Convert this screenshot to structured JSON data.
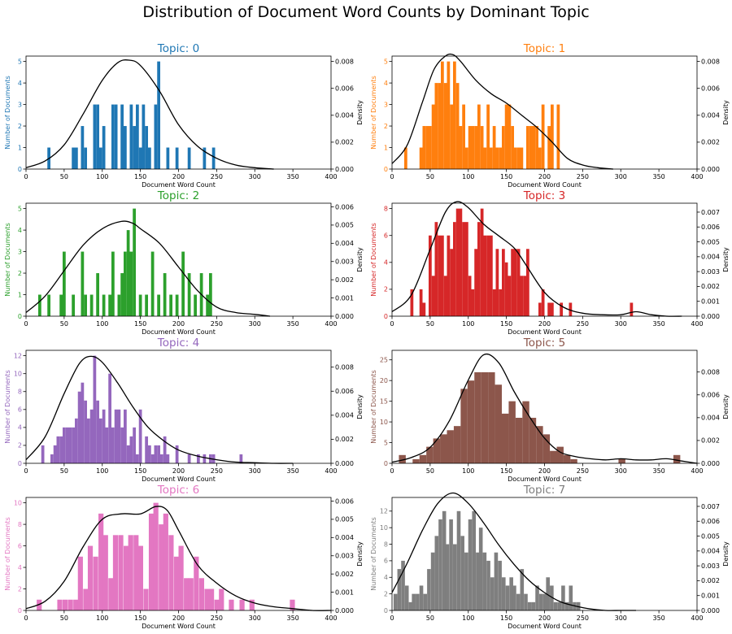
{
  "figure": {
    "title": "Distribution of Document Word Counts by Dominant Topic"
  },
  "chart_data": [
    {
      "type": "bar",
      "title": "Topic: 0",
      "color": "#1f77b4",
      "xlabel": "Document Word Count",
      "ylabel": "Number of Documents",
      "ylabel2": "Density",
      "xlim": [
        0,
        400
      ],
      "xticks": [
        0,
        50,
        100,
        150,
        200,
        250,
        300,
        350,
        400
      ],
      "ylim": [
        0,
        5.25
      ],
      "yticks": [
        0,
        1,
        2,
        3,
        4,
        5
      ],
      "y2lim": [
        0,
        0.0084
      ],
      "y2ticks": [
        "0.000",
        "0.002",
        "0.004",
        "0.006",
        "0.008"
      ],
      "bin_width": 4,
      "bin_starts": [
        28,
        60,
        64,
        72,
        76,
        88,
        92,
        96,
        100,
        112,
        116,
        124,
        128,
        136,
        140,
        144,
        148,
        152,
        156,
        160,
        168,
        172,
        184,
        196,
        212,
        232,
        244
      ],
      "counts": [
        1,
        1,
        1,
        2,
        1,
        3,
        3,
        1,
        2,
        3,
        3,
        3,
        2,
        3,
        2,
        3,
        1,
        3,
        2,
        1,
        3,
        5,
        1,
        1,
        1,
        1,
        1
      ],
      "kde_x": [
        0,
        25,
        50,
        75,
        100,
        120,
        135,
        150,
        175,
        200,
        225,
        250,
        275,
        300,
        325
      ],
      "kde_y": [
        0.0001,
        0.0006,
        0.0018,
        0.0041,
        0.0066,
        0.0079,
        0.0081,
        0.0077,
        0.0058,
        0.0033,
        0.0017,
        0.0008,
        0.0003,
        0.0001,
        0.0
      ]
    },
    {
      "type": "bar",
      "title": "Topic: 1",
      "color": "#ff7f0e",
      "xlabel": "Document Word Count",
      "ylabel": "Number of Documents",
      "ylabel2": "Density",
      "xlim": [
        0,
        400
      ],
      "xticks": [
        0,
        50,
        100,
        150,
        200,
        250,
        300,
        350,
        400
      ],
      "ylim": [
        0,
        5.25
      ],
      "yticks": [
        0,
        1,
        2,
        3,
        4,
        5
      ],
      "y2lim": [
        0,
        0.0084
      ],
      "y2ticks": [
        "0.000",
        "0.002",
        "0.004",
        "0.006",
        "0.008"
      ],
      "bin_width": 4,
      "bin_starts": [
        16,
        36,
        40,
        44,
        48,
        52,
        56,
        60,
        64,
        68,
        72,
        76,
        80,
        84,
        88,
        92,
        96,
        100,
        104,
        108,
        112,
        116,
        120,
        124,
        128,
        132,
        136,
        140,
        144,
        148,
        152,
        156,
        160,
        164,
        168,
        176,
        180,
        184,
        188,
        192,
        196,
        204,
        208,
        216
      ],
      "counts": [
        1,
        1,
        2,
        2,
        2,
        3,
        4,
        4,
        5,
        4,
        5,
        3,
        5,
        4,
        2,
        3,
        1,
        2,
        2,
        2,
        3,
        2,
        1,
        3,
        1,
        2,
        1,
        1,
        2,
        3,
        3,
        2,
        1,
        1,
        1,
        2,
        2,
        2,
        2,
        1,
        3,
        2,
        3,
        3
      ],
      "kde_x": [
        0,
        20,
        40,
        55,
        70,
        80,
        90,
        110,
        130,
        150,
        170,
        190,
        210,
        230,
        250,
        270,
        290
      ],
      "kde_y": [
        0.0004,
        0.0018,
        0.005,
        0.0074,
        0.0084,
        0.0085,
        0.008,
        0.0066,
        0.0056,
        0.0049,
        0.004,
        0.0031,
        0.002,
        0.0008,
        0.0003,
        0.0001,
        0.0
      ]
    },
    {
      "type": "bar",
      "title": "Topic: 2",
      "color": "#2ca02c",
      "xlabel": "Document Word Count",
      "ylabel": "Number of Documents",
      "ylabel2": "Density",
      "xlim": [
        0,
        400
      ],
      "xticks": [
        0,
        50,
        100,
        150,
        200,
        250,
        300,
        350,
        400
      ],
      "ylim": [
        0,
        5.25
      ],
      "yticks": [
        0,
        1,
        2,
        3,
        4,
        5
      ],
      "y2lim": [
        0,
        0.0062
      ],
      "y2ticks": [
        "0.000",
        "0.001",
        "0.002",
        "0.003",
        "0.004",
        "0.005",
        "0.006"
      ],
      "bin_width": 4,
      "bin_starts": [
        16,
        28,
        44,
        48,
        60,
        72,
        76,
        84,
        92,
        100,
        108,
        112,
        120,
        124,
        128,
        132,
        136,
        140,
        148,
        156,
        164,
        172,
        180,
        188,
        196,
        204,
        212,
        220,
        228,
        236,
        240
      ],
      "counts": [
        1,
        1,
        1,
        3,
        1,
        3,
        1,
        1,
        2,
        1,
        1,
        3,
        1,
        2,
        3,
        4,
        3,
        5,
        1,
        1,
        3,
        1,
        2,
        1,
        1,
        3,
        2,
        1,
        2,
        1,
        2
      ],
      "kde_x": [
        0,
        25,
        50,
        75,
        100,
        125,
        140,
        150,
        175,
        200,
        225,
        250,
        275,
        300,
        320
      ],
      "kde_y": [
        0.0002,
        0.0011,
        0.0025,
        0.0039,
        0.0048,
        0.0052,
        0.0051,
        0.0048,
        0.004,
        0.0027,
        0.0014,
        0.0005,
        0.0002,
        0.0001,
        0.0
      ]
    },
    {
      "type": "bar",
      "title": "Topic: 3",
      "color": "#d62728",
      "xlabel": "Document Word Count",
      "ylabel": "Number of Documents",
      "ylabel2": "Density",
      "xlim": [
        0,
        400
      ],
      "xticks": [
        0,
        50,
        100,
        150,
        200,
        250,
        300,
        350,
        400
      ],
      "ylim": [
        0,
        8.4
      ],
      "yticks": [
        0,
        2,
        4,
        6,
        8
      ],
      "y2lim": [
        0,
        0.0076
      ],
      "y2ticks": [
        "0.000",
        "0.001",
        "0.002",
        "0.003",
        "0.004",
        "0.005",
        "0.006",
        "0.007"
      ],
      "bin_width": 4,
      "bin_starts": [
        24,
        36,
        40,
        48,
        52,
        56,
        60,
        64,
        68,
        72,
        76,
        80,
        84,
        88,
        92,
        96,
        100,
        104,
        108,
        112,
        116,
        120,
        124,
        128,
        132,
        136,
        140,
        144,
        148,
        152,
        156,
        160,
        164,
        168,
        172,
        176,
        192,
        196,
        204,
        208,
        220,
        232,
        312
      ],
      "counts": [
        2,
        2,
        1,
        6,
        3,
        7,
        6,
        6,
        3,
        6,
        5,
        7,
        8,
        8,
        7,
        7,
        3,
        2,
        5,
        7,
        8,
        6,
        6,
        6,
        2,
        5,
        2,
        5,
        4,
        3,
        5,
        5,
        5,
        3,
        3,
        5,
        1,
        2,
        1,
        1,
        1,
        1,
        1
      ],
      "kde_x": [
        0,
        25,
        50,
        70,
        85,
        100,
        120,
        140,
        160,
        175,
        200,
        225,
        250,
        275,
        300,
        320,
        340,
        360,
        380
      ],
      "kde_y": [
        0.0003,
        0.0014,
        0.0045,
        0.007,
        0.0077,
        0.0073,
        0.0062,
        0.0054,
        0.0046,
        0.0035,
        0.0016,
        0.0006,
        0.0002,
        0.0001,
        0.0001,
        0.0003,
        0.0001,
        0.0,
        0.0
      ]
    },
    {
      "type": "bar",
      "title": "Topic: 4",
      "color": "#9467bd",
      "xlabel": "Document Word Count",
      "ylabel": "Number of Documents",
      "ylabel2": "Density",
      "xlim": [
        0,
        400
      ],
      "xticks": [
        0,
        50,
        100,
        150,
        200,
        250,
        300,
        350,
        400
      ],
      "ylim": [
        0,
        12.6
      ],
      "yticks": [
        0,
        2,
        4,
        6,
        8,
        10,
        12
      ],
      "y2lim": [
        0,
        0.0094
      ],
      "y2ticks": [
        "0.000",
        "0.002",
        "0.004",
        "0.006",
        "0.008"
      ],
      "bin_width": 4,
      "bin_starts": [
        20,
        32,
        36,
        40,
        44,
        48,
        52,
        56,
        60,
        64,
        68,
        72,
        76,
        80,
        84,
        88,
        92,
        96,
        100,
        104,
        108,
        112,
        116,
        120,
        124,
        128,
        132,
        136,
        140,
        144,
        148,
        156,
        160,
        164,
        168,
        172,
        176,
        180,
        184,
        196,
        212,
        224,
        232,
        240,
        244,
        280
      ],
      "counts": [
        2,
        1,
        2,
        3,
        3,
        4,
        4,
        4,
        4,
        5,
        8,
        9,
        7,
        5,
        6,
        12,
        7,
        5,
        6,
        4,
        10,
        4,
        6,
        6,
        4,
        6,
        2,
        3,
        4,
        1,
        6,
        3,
        2,
        1,
        2,
        2,
        1,
        3,
        1,
        2,
        1,
        1,
        1,
        1,
        1,
        1
      ],
      "kde_x": [
        0,
        25,
        50,
        70,
        85,
        100,
        120,
        140,
        160,
        180,
        200,
        225,
        250,
        275,
        300,
        325,
        350
      ],
      "kde_y": [
        0.0003,
        0.0022,
        0.0058,
        0.0083,
        0.0089,
        0.0084,
        0.0067,
        0.0047,
        0.003,
        0.0019,
        0.0011,
        0.0006,
        0.0003,
        0.0001,
        5e-05,
        0.0,
        0.0
      ]
    },
    {
      "type": "bar",
      "title": "Topic: 5",
      "color": "#8c564b",
      "xlabel": "Document Word Count",
      "ylabel": "Number of Documents",
      "ylabel2": "Density",
      "xlim": [
        0,
        400
      ],
      "xticks": [
        0,
        50,
        100,
        150,
        200,
        250,
        300,
        350,
        400
      ],
      "ylim": [
        0,
        27.3
      ],
      "yticks": [
        0,
        5,
        10,
        15,
        20,
        25
      ],
      "y2lim": [
        0,
        0.0099
      ],
      "y2ticks": [
        "0.000",
        "0.002",
        "0.004",
        "0.006",
        "0.008"
      ],
      "bin_width": 9,
      "bin_starts": [
        9,
        27,
        36,
        45,
        54,
        63,
        72,
        81,
        90,
        99,
        108,
        117,
        126,
        135,
        144,
        153,
        162,
        171,
        180,
        189,
        198,
        207,
        216,
        225,
        234,
        297,
        369
      ],
      "counts": [
        2,
        1,
        2,
        4,
        6,
        7,
        8,
        9,
        18,
        20,
        22,
        22,
        22,
        19,
        12,
        15,
        11,
        15,
        11,
        9,
        7,
        3,
        4,
        2,
        1,
        1,
        2
      ],
      "kde_x": [
        0,
        25,
        50,
        75,
        100,
        120,
        140,
        160,
        180,
        200,
        220,
        240,
        260,
        280,
        300,
        320,
        340,
        360,
        380,
        400
      ],
      "kde_y": [
        0.0001,
        0.0005,
        0.0014,
        0.0037,
        0.0073,
        0.0095,
        0.0088,
        0.0063,
        0.0041,
        0.0022,
        0.001,
        0.0006,
        0.0004,
        0.0003,
        0.0004,
        0.0003,
        0.0003,
        0.0004,
        0.0002,
        0.0
      ]
    },
    {
      "type": "bar",
      "title": "Topic: 6",
      "color": "#e377c2",
      "xlabel": "Document Word Count",
      "ylabel": "Number of Documents",
      "ylabel2": "Density",
      "xlim": [
        0,
        400
      ],
      "xticks": [
        0,
        50,
        100,
        150,
        200,
        250,
        300,
        350,
        400
      ],
      "ylim": [
        0,
        10.5
      ],
      "yticks": [
        0,
        2,
        4,
        6,
        8,
        10
      ],
      "y2lim": [
        0,
        0.0062
      ],
      "y2ticks": [
        "0.000",
        "0.001",
        "0.002",
        "0.003",
        "0.004",
        "0.005",
        "0.006"
      ],
      "bin_width": 6.6,
      "bin_starts": [
        14,
        41,
        48,
        55,
        62,
        68,
        75,
        81,
        88,
        95,
        101,
        108,
        114,
        121,
        128,
        134,
        141,
        147,
        154,
        161,
        167,
        174,
        180,
        187,
        194,
        200,
        207,
        213,
        220,
        227,
        234,
        240,
        247,
        253,
        266,
        280,
        293,
        346
      ],
      "counts": [
        1,
        1,
        1,
        1,
        1,
        5,
        2,
        6,
        5,
        9,
        7,
        3,
        7,
        7,
        6,
        7,
        7,
        6,
        2,
        9,
        10,
        8,
        9,
        7,
        5,
        6,
        3,
        3,
        5,
        3,
        2,
        2,
        1,
        2,
        1,
        1,
        1,
        1
      ],
      "kde_x": [
        0,
        25,
        50,
        75,
        100,
        125,
        150,
        170,
        185,
        200,
        225,
        250,
        275,
        300,
        325,
        350,
        375,
        400
      ],
      "kde_y": [
        0.0001,
        0.0005,
        0.0016,
        0.0035,
        0.005,
        0.0053,
        0.0053,
        0.0057,
        0.0055,
        0.0044,
        0.0025,
        0.0015,
        0.0008,
        0.0004,
        0.0002,
        0.0001,
        0.0,
        0.0
      ]
    },
    {
      "type": "bar",
      "title": "Topic: 7",
      "color": "#7f7f7f",
      "xlabel": "Document Word Count",
      "ylabel": "Number of Documents",
      "ylabel2": "Density",
      "xlim": [
        0,
        400
      ],
      "xticks": [
        0,
        50,
        100,
        150,
        200,
        250,
        300,
        350,
        400
      ],
      "ylim": [
        0,
        13.65
      ],
      "yticks": [
        0,
        2,
        4,
        6,
        8,
        10,
        12
      ],
      "y2lim": [
        0,
        0.0076
      ],
      "y2ticks": [
        "0.000",
        "0.001",
        "0.002",
        "0.003",
        "0.004",
        "0.005",
        "0.006",
        "0.007"
      ],
      "bin_width": 4.9,
      "bin_starts": [
        2,
        7,
        12,
        17,
        22,
        26,
        31,
        36,
        41,
        46,
        51,
        56,
        61,
        66,
        70,
        75,
        80,
        85,
        90,
        95,
        100,
        105,
        110,
        114,
        119,
        124,
        129,
        134,
        139,
        144,
        149,
        154,
        158,
        163,
        168,
        173,
        178,
        183,
        188,
        193,
        198,
        202,
        207,
        212,
        217,
        222,
        227,
        232,
        237,
        242
      ],
      "counts": [
        2,
        5,
        6,
        3,
        1,
        2,
        2,
        3,
        2,
        5,
        7,
        9,
        11,
        12,
        8,
        11,
        8,
        12,
        9,
        7,
        11,
        12,
        7,
        10,
        7,
        6,
        4,
        7,
        6,
        4,
        3,
        4,
        3,
        2,
        5,
        2,
        1,
        1,
        3,
        2,
        2,
        4,
        3,
        1,
        1,
        3,
        1,
        3,
        1,
        1
      ],
      "kde_x": [
        0,
        20,
        40,
        60,
        80,
        100,
        120,
        140,
        160,
        180,
        200,
        220,
        240,
        260,
        280,
        300,
        320
      ],
      "kde_y": [
        0.0012,
        0.0032,
        0.0054,
        0.0072,
        0.0079,
        0.0072,
        0.0059,
        0.0044,
        0.0031,
        0.002,
        0.0012,
        0.0006,
        0.0003,
        0.0001,
        0.0,
        0.0,
        0.0
      ]
    }
  ]
}
